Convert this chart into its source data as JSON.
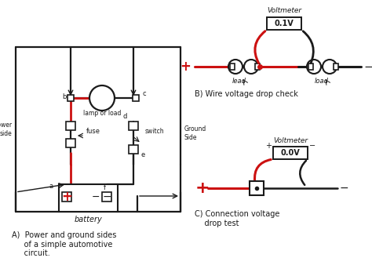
{
  "bg_color": "#ffffff",
  "line_color": "#1a1a1a",
  "red_color": "#cc1111",
  "title_A": "A)  Power and ground sides\n     of a simple automotive\n     circuit.",
  "title_B": "B) Wire voltage drop check",
  "title_C": "C) Connection voltage\n    drop test",
  "voltmeter_B_text": "0.1V",
  "voltmeter_C_text": "0.0V",
  "voltmeter_label": "Voltmeter"
}
